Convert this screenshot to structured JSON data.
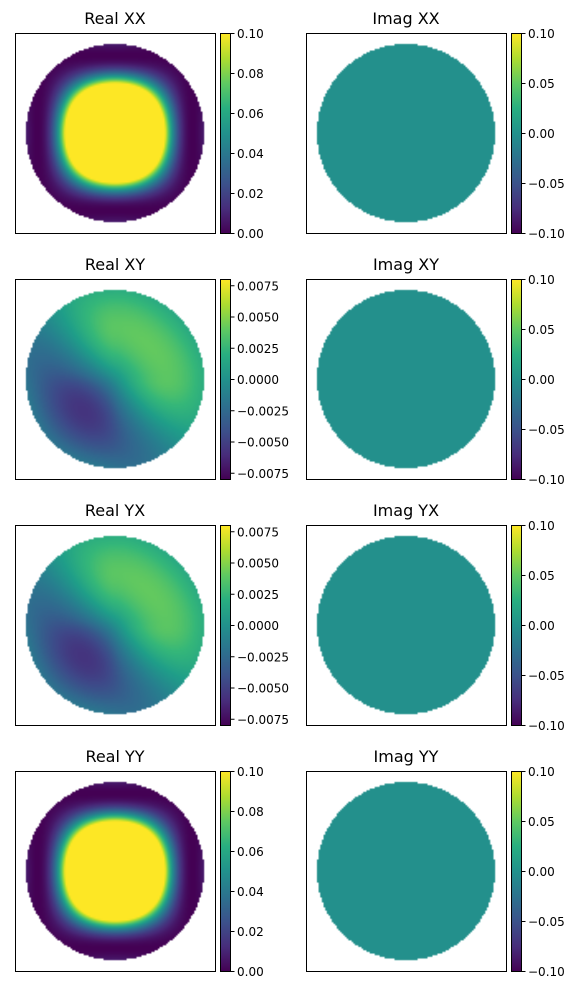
{
  "chart_data": [
    {
      "type": "heatmap",
      "title": "Real XX",
      "pattern": "beam",
      "colormap": "viridis",
      "clim": [
        0,
        0.1
      ],
      "colorbar_ticks": [
        "0.00",
        "0.02",
        "0.04",
        "0.06",
        "0.08",
        "0.10"
      ],
      "xticks": [],
      "yticks": []
    },
    {
      "type": "heatmap",
      "title": "Imag XX",
      "pattern": "constant",
      "value": 0,
      "colormap": "viridis",
      "clim": [
        -0.1,
        0.1
      ],
      "colorbar_ticks": [
        "−0.10",
        "−0.05",
        "0.00",
        "0.05",
        "0.10"
      ],
      "xticks": [],
      "yticks": []
    },
    {
      "type": "heatmap",
      "title": "Real XY",
      "pattern": "cross",
      "sign": 1,
      "colormap": "viridis",
      "clim": [
        -0.008,
        0.008
      ],
      "colorbar_ticks": [
        "−0.0075",
        "−0.0050",
        "−0.0025",
        "0.0000",
        "0.0025",
        "0.0050",
        "0.0075"
      ],
      "xticks": [],
      "yticks": []
    },
    {
      "type": "heatmap",
      "title": "Imag XY",
      "pattern": "constant",
      "value": 0,
      "colormap": "viridis",
      "clim": [
        -0.1,
        0.1
      ],
      "colorbar_ticks": [
        "−0.10",
        "−0.05",
        "0.00",
        "0.05",
        "0.10"
      ],
      "xticks": [],
      "yticks": []
    },
    {
      "type": "heatmap",
      "title": "Real YX",
      "pattern": "cross",
      "sign": 1,
      "colormap": "viridis",
      "clim": [
        -0.008,
        0.008
      ],
      "colorbar_ticks": [
        "−0.0075",
        "−0.0050",
        "−0.0025",
        "0.0000",
        "0.0025",
        "0.0050",
        "0.0075"
      ],
      "xticks": [],
      "yticks": []
    },
    {
      "type": "heatmap",
      "title": "Imag YX",
      "pattern": "constant",
      "value": 0,
      "colormap": "viridis",
      "clim": [
        -0.1,
        0.1
      ],
      "colorbar_ticks": [
        "−0.10",
        "−0.05",
        "0.00",
        "0.05",
        "0.10"
      ],
      "xticks": [],
      "yticks": []
    },
    {
      "type": "heatmap",
      "title": "Real YY",
      "pattern": "beam",
      "colormap": "viridis",
      "clim": [
        0,
        0.1
      ],
      "colorbar_ticks": [
        "0.00",
        "0.02",
        "0.04",
        "0.06",
        "0.08",
        "0.10"
      ],
      "xticks": [],
      "yticks": []
    },
    {
      "type": "heatmap",
      "title": "Imag YY",
      "pattern": "constant",
      "value": 0,
      "colormap": "viridis",
      "clim": [
        -0.1,
        0.1
      ],
      "colorbar_ticks": [
        "−0.10",
        "−0.05",
        "0.00",
        "0.05",
        "0.10"
      ],
      "xticks": [],
      "yticks": []
    }
  ]
}
